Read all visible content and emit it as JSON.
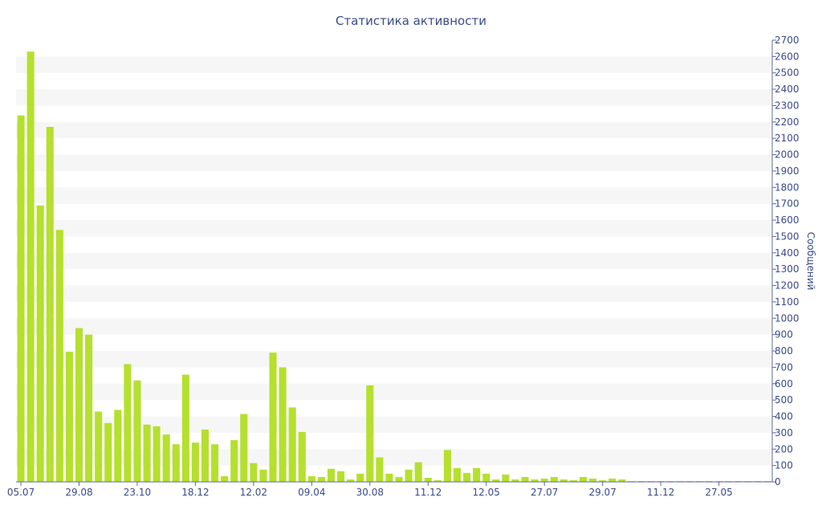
{
  "chart_data": {
    "type": "bar",
    "title": "Статистика активности",
    "ylabel": "Сообщений",
    "xlabel": "",
    "ylim": [
      0,
      2700
    ],
    "y_axis_position": "right",
    "yticks": [
      0,
      100,
      200,
      300,
      400,
      500,
      600,
      700,
      800,
      900,
      1000,
      1100,
      1200,
      1300,
      1400,
      1500,
      1600,
      1700,
      1800,
      1900,
      2000,
      2100,
      2200,
      2300,
      2400,
      2500,
      2600,
      2700
    ],
    "xtick_labels": [
      {
        "index": 0,
        "label": "05.07"
      },
      {
        "index": 6,
        "label": "29.08"
      },
      {
        "index": 12,
        "label": "23.10"
      },
      {
        "index": 18,
        "label": "18.12"
      },
      {
        "index": 24,
        "label": "12.02"
      },
      {
        "index": 30,
        "label": "09.04"
      },
      {
        "index": 36,
        "label": "30.08"
      },
      {
        "index": 42,
        "label": "11.12"
      },
      {
        "index": 48,
        "label": "12.05"
      },
      {
        "index": 54,
        "label": "27.07"
      },
      {
        "index": 60,
        "label": "29.07"
      },
      {
        "index": 66,
        "label": "11.12"
      },
      {
        "index": 72,
        "label": "27.05"
      }
    ],
    "values": [
      2240,
      2630,
      1690,
      2170,
      1540,
      795,
      940,
      900,
      430,
      360,
      440,
      720,
      620,
      350,
      340,
      290,
      230,
      655,
      240,
      320,
      230,
      35,
      255,
      415,
      115,
      75,
      790,
      700,
      455,
      305,
      35,
      30,
      80,
      65,
      15,
      50,
      590,
      150,
      50,
      30,
      75,
      120,
      25,
      10,
      195,
      85,
      55,
      85,
      50,
      15,
      45,
      15,
      30,
      15,
      20,
      30,
      15,
      10,
      30,
      20,
      10,
      20,
      15,
      5,
      5,
      5,
      5,
      5,
      5,
      5,
      5,
      5,
      5,
      5,
      5,
      5,
      5,
      5
    ],
    "grid": "alternating horizontal bands",
    "bar_color": "#b5e02e"
  }
}
